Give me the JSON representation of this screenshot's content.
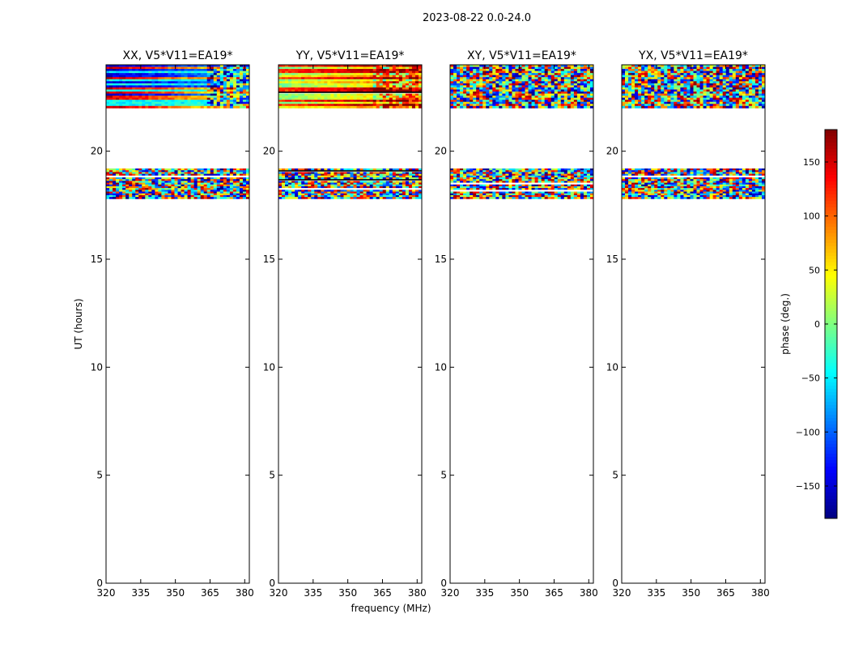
{
  "figure": {
    "suptitle": "2023-08-22 0.0-24.0",
    "xlabel": "frequency (MHz)",
    "ylabel": "UT (hours)"
  },
  "colorbar": {
    "label": "phase (deg.)",
    "min": -180,
    "max": 180,
    "ticks": [
      -150,
      -100,
      -50,
      0,
      50,
      100,
      150
    ],
    "tick_labels": [
      "−150",
      "−100",
      "−50",
      "0",
      "50",
      "100",
      "150"
    ],
    "colormap": "jet"
  },
  "chart_data": {
    "type": "heatmap",
    "xlim": [
      320,
      382
    ],
    "ylim": [
      0,
      24
    ],
    "x_ticks": [
      320,
      335,
      350,
      365,
      380
    ],
    "y_ticks": [
      0,
      5,
      10,
      15,
      20
    ],
    "panels": [
      {
        "title": "XX, V5*V11=EA19*",
        "pattern": "smooth",
        "bands": [
          [
            22.0,
            24.0
          ],
          [
            17.8,
            19.2
          ]
        ],
        "phase_description": "upper band: red/orange and dark blue stripes at low frequency, grading toward blue/cyan; lower band: mixed noisy colors"
      },
      {
        "title": "YY, V5*V11=EA19*",
        "pattern": "smooth",
        "bands": [
          [
            22.0,
            24.0
          ],
          [
            17.8,
            19.2
          ]
        ],
        "phase_description": "upper band: green/yellow and orange/red stripes; lower band: mixed noisy colors"
      },
      {
        "title": "XY, V5*V11=EA19*",
        "pattern": "noise",
        "bands": [
          [
            22.0,
            24.0
          ],
          [
            17.8,
            19.2
          ]
        ],
        "phase_description": "noisy random phase"
      },
      {
        "title": "YX, V5*V11=EA19*",
        "pattern": "noise",
        "bands": [
          [
            22.0,
            24.0
          ],
          [
            17.8,
            19.2
          ]
        ],
        "phase_description": "noisy random phase"
      }
    ]
  }
}
